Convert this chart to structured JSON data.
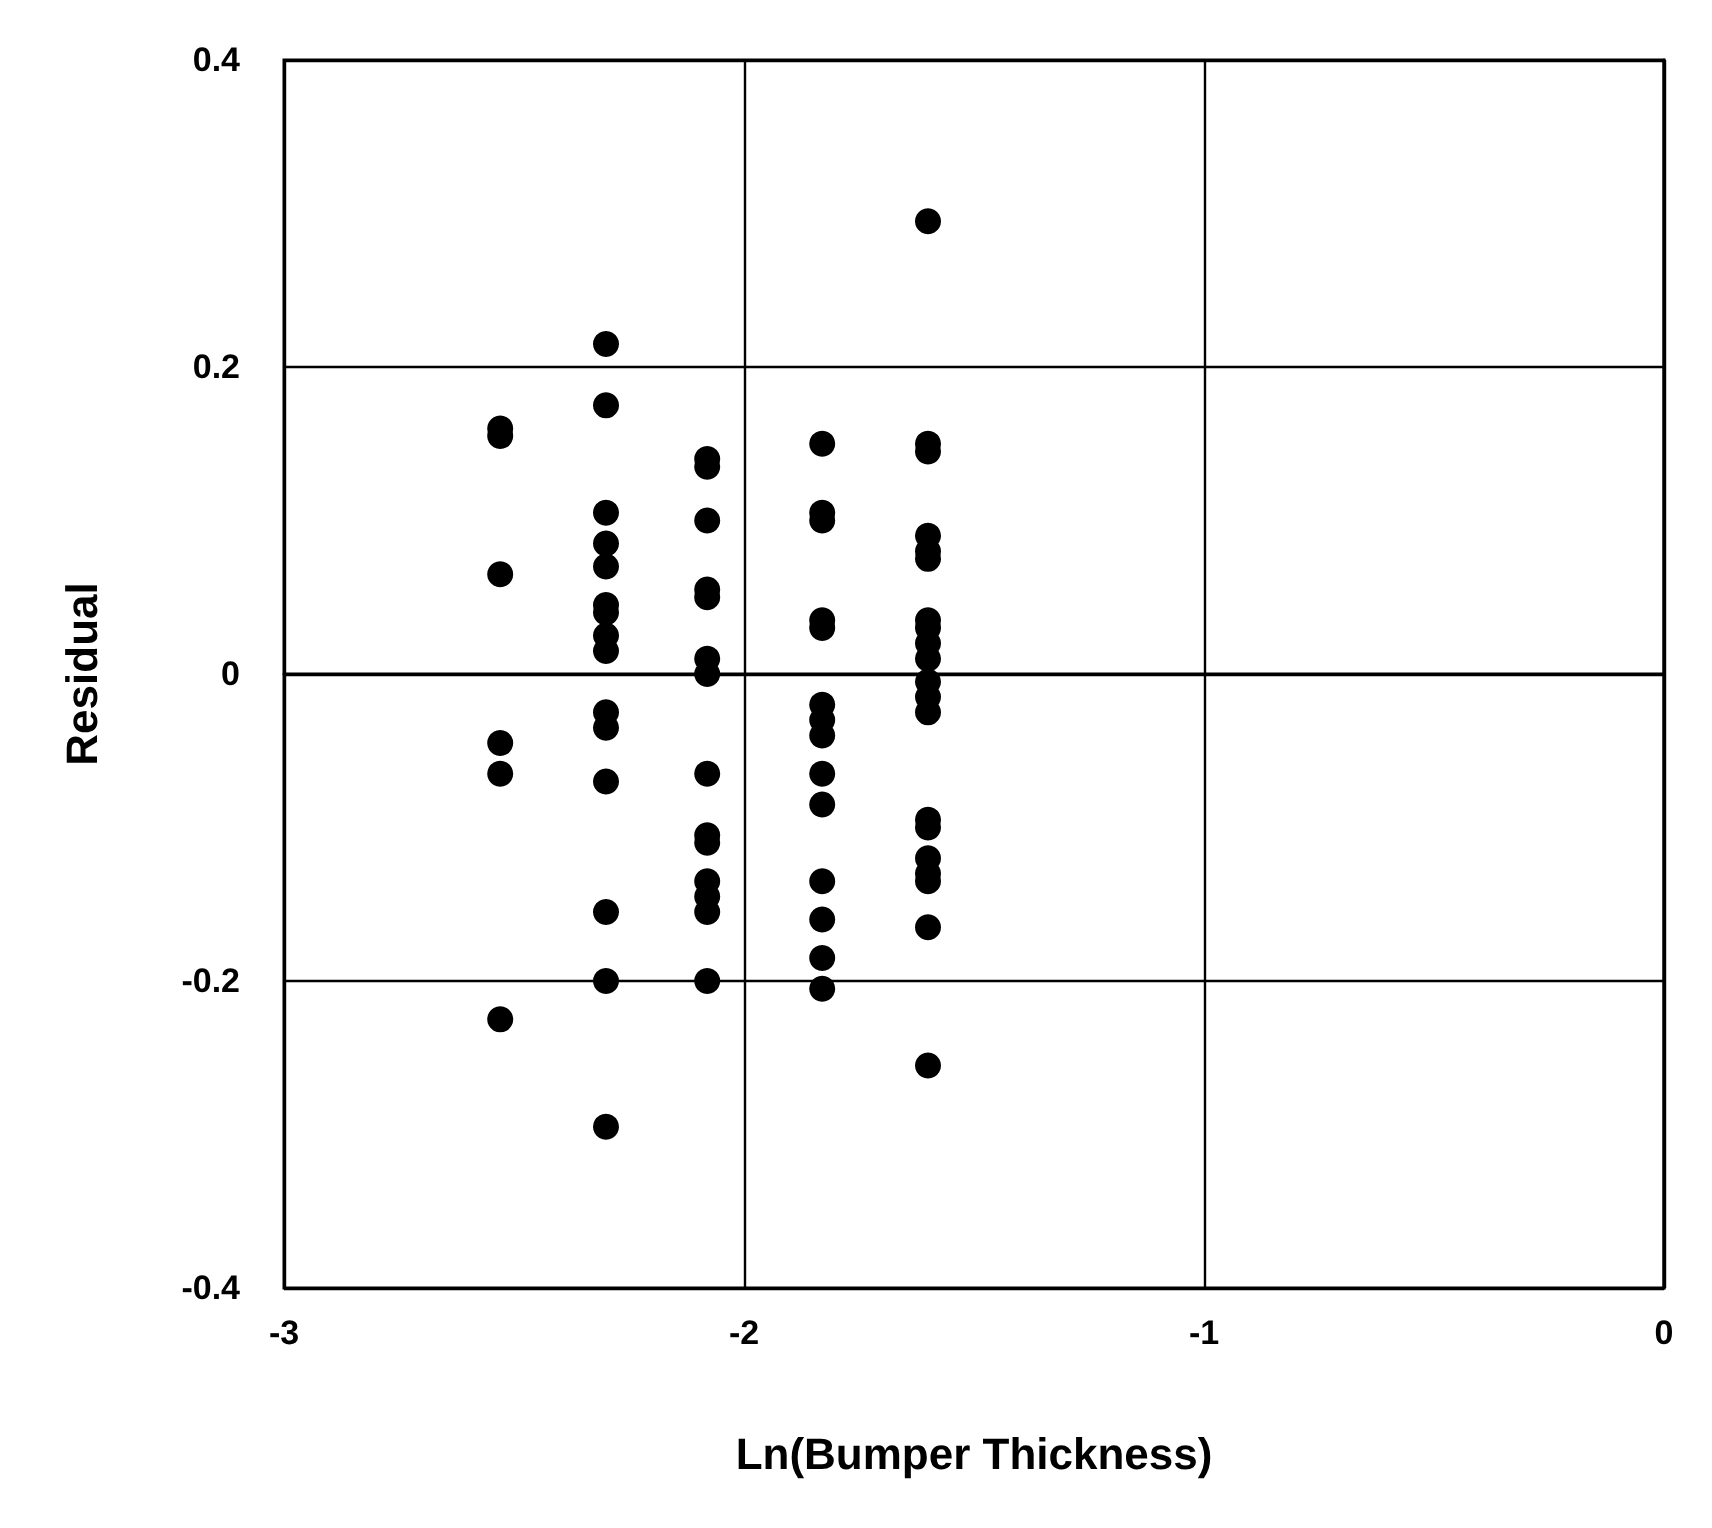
{
  "chart_data": {
    "type": "scatter",
    "xlabel": "Ln(Bumper Thickness)",
    "ylabel": "Residual",
    "x": [
      -2.53,
      -2.53,
      -2.53,
      -2.53,
      -2.53,
      -2.53,
      -2.3,
      -2.3,
      -2.3,
      -2.3,
      -2.3,
      -2.3,
      -2.3,
      -2.3,
      -2.3,
      -2.3,
      -2.3,
      -2.3,
      -2.3,
      -2.3,
      -2.3,
      -2.08,
      -2.08,
      -2.08,
      -2.08,
      -2.08,
      -2.08,
      -2.08,
      -2.08,
      -2.08,
      -2.08,
      -2.08,
      -2.08,
      -2.08,
      -2.08,
      -1.83,
      -1.83,
      -1.83,
      -1.83,
      -1.83,
      -1.83,
      -1.83,
      -1.83,
      -1.83,
      -1.83,
      -1.83,
      -1.83,
      -1.83,
      -1.83,
      -1.6,
      -1.6,
      -1.6,
      -1.6,
      -1.6,
      -1.6,
      -1.6,
      -1.6,
      -1.6,
      -1.6,
      -1.6,
      -1.6,
      -1.6,
      -1.6,
      -1.6,
      -1.6,
      -1.6,
      -1.6,
      -1.6,
      -1.6
    ],
    "series": [
      {
        "color": "#000000",
        "values": [
          0.16,
          0.155,
          0.065,
          -0.045,
          -0.065,
          -0.225,
          0.215,
          0.175,
          0.105,
          0.085,
          0.07,
          0.045,
          0.04,
          0.025,
          0.015,
          -0.025,
          -0.035,
          -0.07,
          -0.155,
          -0.2,
          -0.295,
          0.14,
          0.135,
          0.1,
          0.055,
          0.05,
          0.01,
          0,
          -0.065,
          -0.105,
          -0.11,
          -0.135,
          -0.145,
          -0.155,
          -0.2,
          0.15,
          0.105,
          0.1,
          0.035,
          0.03,
          -0.02,
          -0.03,
          -0.04,
          -0.065,
          -0.085,
          -0.135,
          -0.16,
          -0.185,
          -0.205,
          0.295,
          0.15,
          0.145,
          0.09,
          0.08,
          0.075,
          0.035,
          0.03,
          0.02,
          0.01,
          -0.005,
          -0.015,
          -0.025,
          -0.095,
          -0.1,
          -0.12,
          -0.13,
          -0.135,
          -0.165,
          -0.255
        ]
      }
    ],
    "xlim": [
      -3,
      0
    ],
    "xticks": [
      -3,
      -2,
      -1,
      0
    ],
    "ylim": [
      -0.4,
      0.4
    ],
    "yticks": [
      -0.4,
      -0.2,
      0,
      0.2,
      0.4
    ],
    "grid": true,
    "marker": "circle"
  }
}
